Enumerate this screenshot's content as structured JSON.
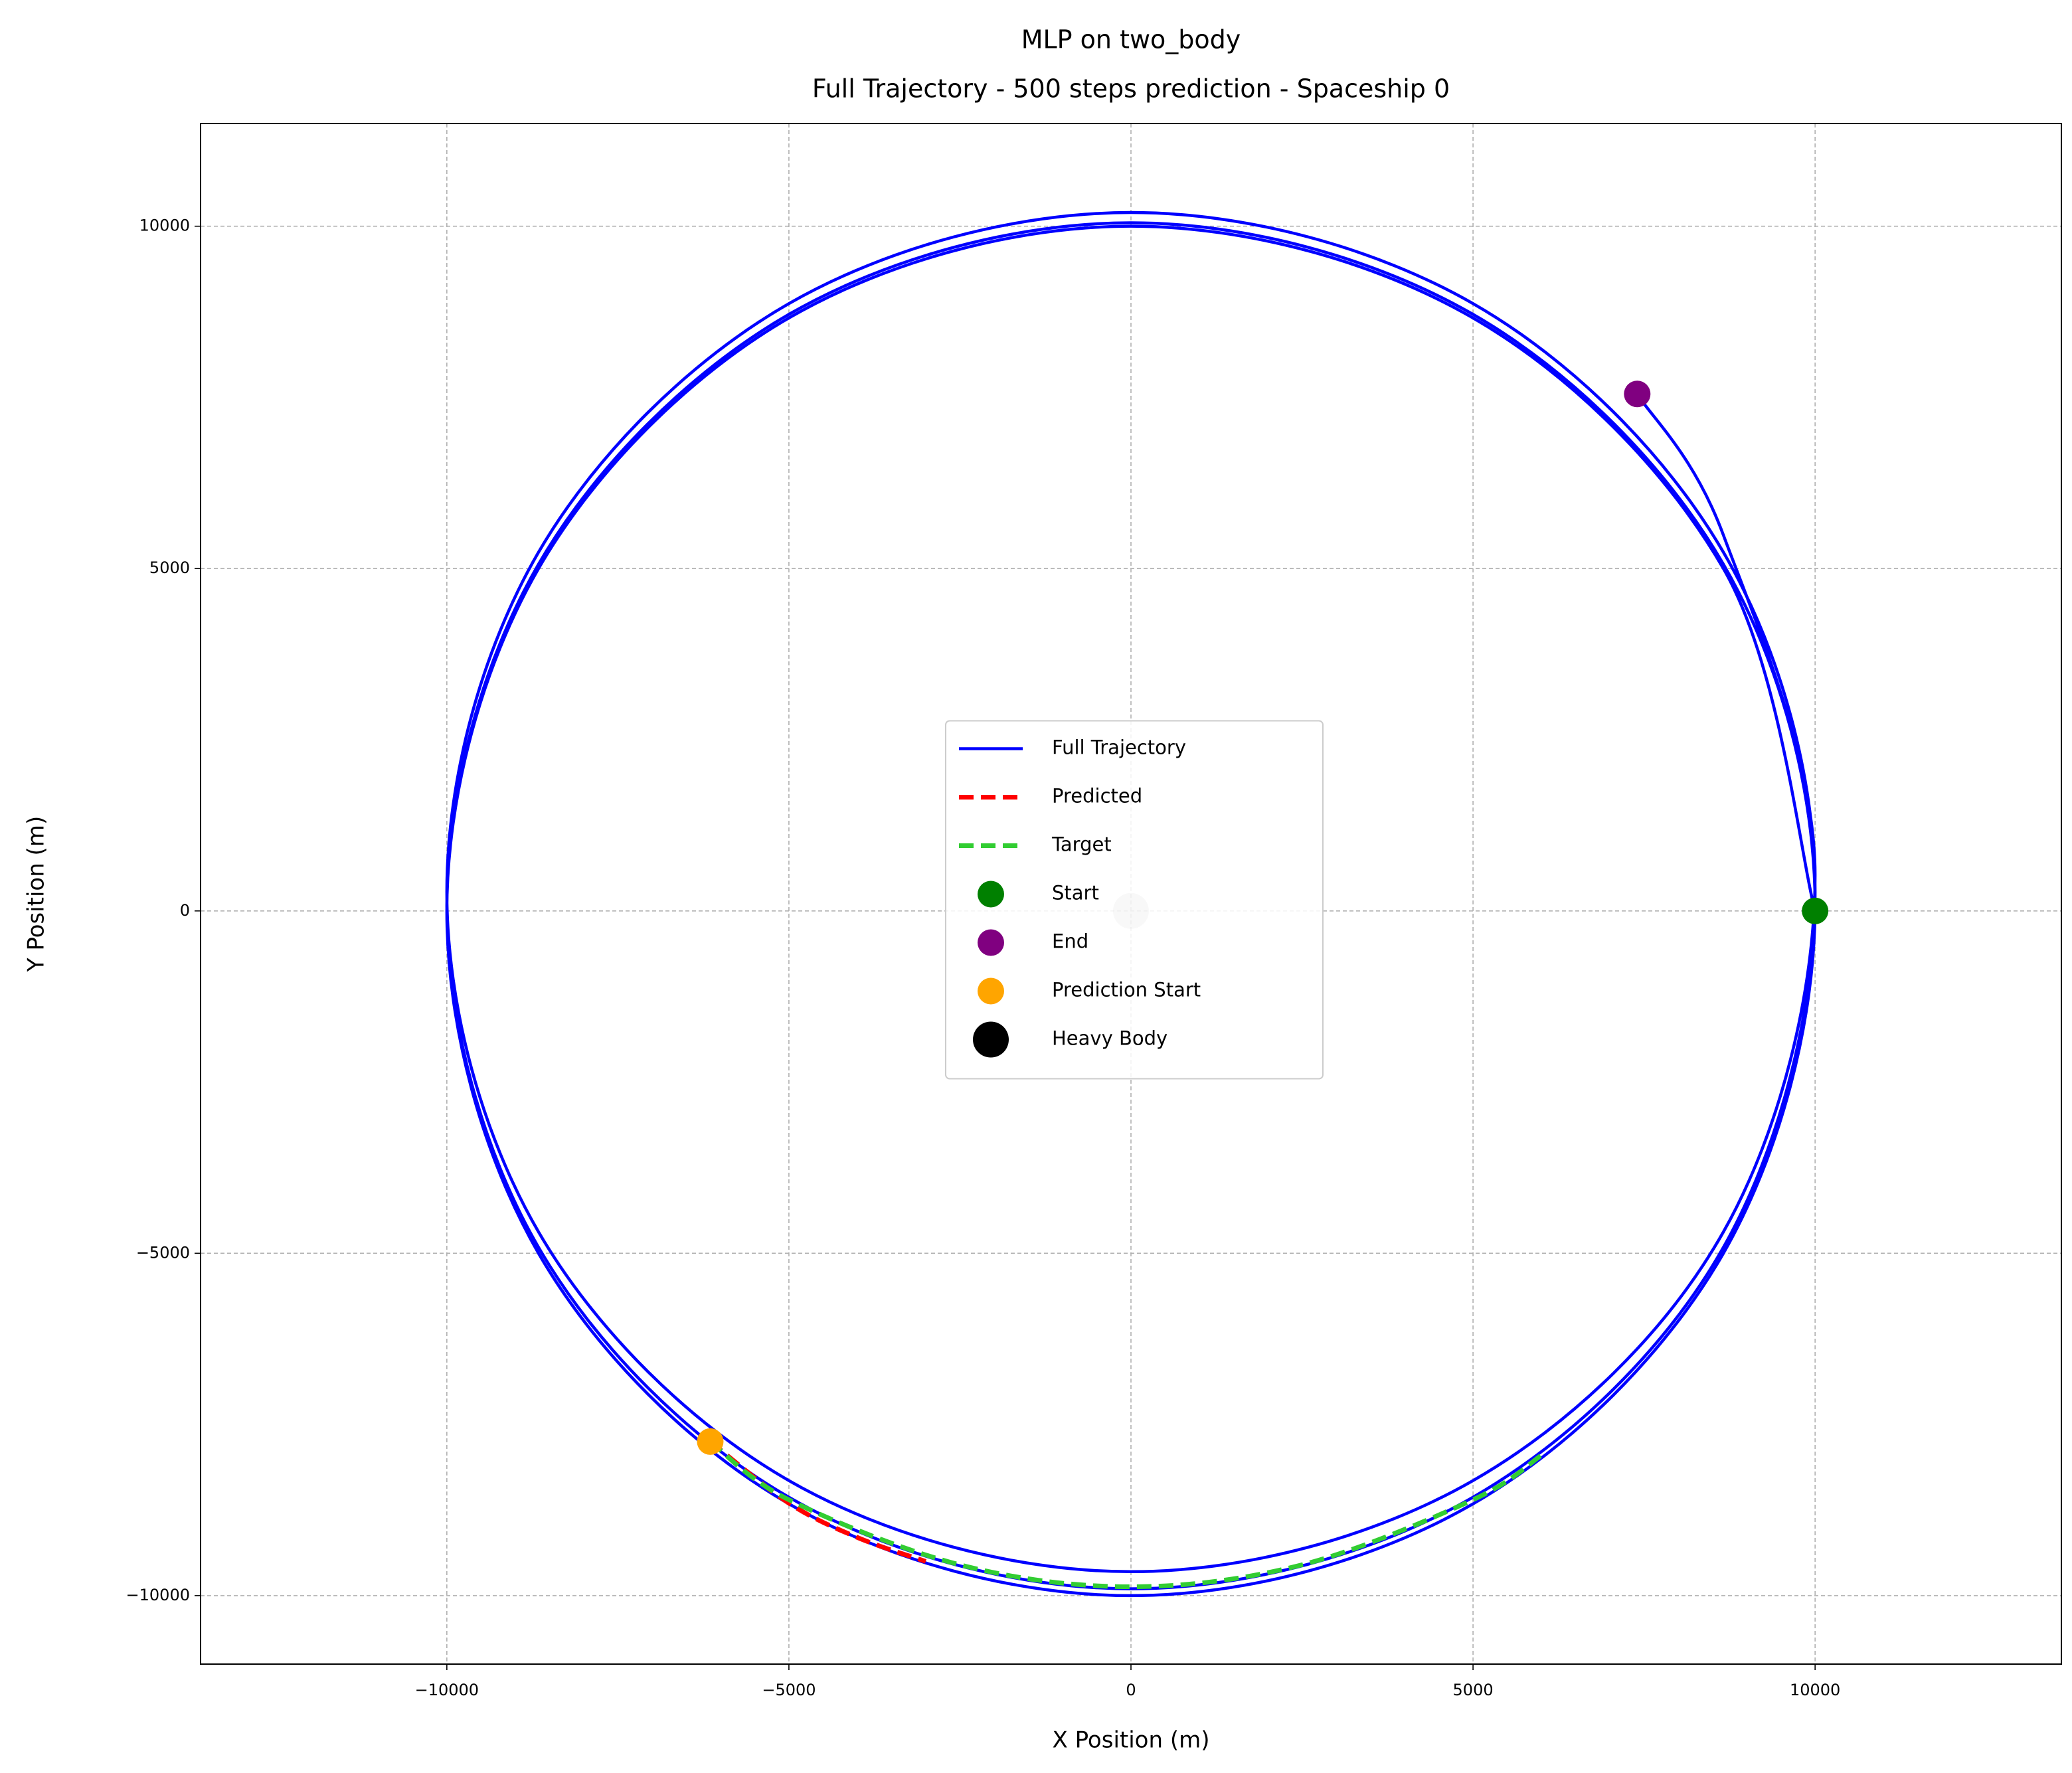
{
  "chart_data": {
    "type": "line",
    "title": "MLP on two_body",
    "subtitle": "Full Trajectory - 500 steps prediction - Spaceship 0",
    "x_label": "X Position (m)",
    "y_label": "Y Position (m)",
    "xlim": [
      -13600,
      13600
    ],
    "ylim": [
      -11000,
      11500
    ],
    "xticks": [
      {
        "value": -10000,
        "label": "−10000"
      },
      {
        "value": -5000,
        "label": "−5000"
      },
      0,
      5000,
      10000
    ],
    "yticks": [
      {
        "value": -10000,
        "label": "−10000"
      },
      {
        "value": -5000,
        "label": "−5000"
      },
      0,
      5000,
      10000
    ],
    "grid": true,
    "legend": "center",
    "series": [
      {
        "name": "Full Trajectory",
        "kind": "line",
        "color": "#0000ff",
        "dashed": false,
        "x": [
          10000,
          8660,
          5000,
          0,
          -5000,
          -8660,
          -10000,
          -8660,
          -5000,
          0,
          5000,
          8660,
          10000,
          8660,
          5000,
          0,
          -5000,
          -8660,
          -10000,
          -8660,
          -5000,
          0,
          5000,
          8660,
          10000,
          8660,
          5000,
          0,
          -5000,
          -8660,
          -10000,
          -8660,
          -5000,
          0,
          5000,
          8660,
          10000,
          8660,
          7400
        ],
        "y": [
          0,
          5000,
          8660,
          10000,
          8660,
          5000,
          0,
          -5000,
          -8660,
          -10000,
          -8660,
          -5000,
          75,
          5063,
          8713,
          10050,
          8713,
          5063,
          75,
          -4913,
          -8563,
          -9900,
          -8563,
          -4913,
          275,
          5238,
          8870,
          10200,
          8870,
          5238,
          275,
          -4688,
          -8320,
          -9650,
          -8320,
          -4688,
          525,
          5488,
          7550
        ]
      },
      {
        "name": "Predicted",
        "kind": "line",
        "color": "#ff0000",
        "dashed": true,
        "x": [
          -6150,
          -5000,
          -4000,
          -3000
        ],
        "y": [
          -7750,
          -8650,
          -9150,
          -9500
        ]
      },
      {
        "name": "Target",
        "kind": "line",
        "color": "#32cd32",
        "dashed": true,
        "x": [
          -6150,
          -5000,
          -2500,
          0,
          2500,
          5000,
          6000
        ],
        "y": [
          -7750,
          -8600,
          -9550,
          -9870,
          -9550,
          -8600,
          -7950
        ]
      },
      {
        "name": "Start",
        "kind": "scatter",
        "color": "#008000",
        "size": 20,
        "x": [
          10000
        ],
        "y": [
          0
        ]
      },
      {
        "name": "End",
        "kind": "scatter",
        "color": "#800080",
        "size": 20,
        "x": [
          7400
        ],
        "y": [
          7550
        ]
      },
      {
        "name": "Prediction Start",
        "kind": "scatter",
        "color": "#ffa500",
        "size": 20,
        "x": [
          -6150
        ],
        "y": [
          -7750
        ]
      },
      {
        "name": "Heavy Body",
        "kind": "scatter",
        "color": "#000000",
        "alpha": 0.2,
        "size": 27,
        "x": [
          0
        ],
        "y": [
          0
        ]
      }
    ]
  }
}
